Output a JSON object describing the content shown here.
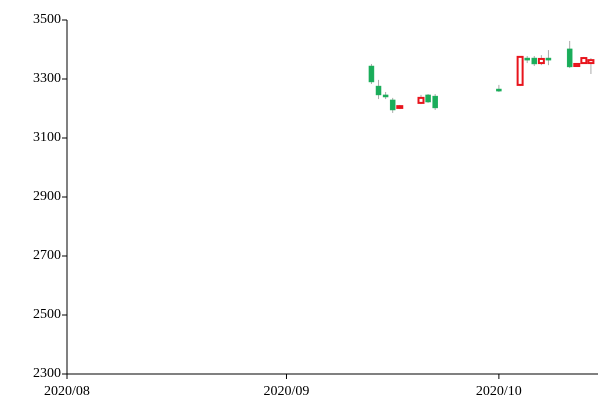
{
  "chart_data": {
    "type": "candlestick",
    "x": [
      "2020-09-13",
      "2020-09-14",
      "2020-09-15",
      "2020-09-16",
      "2020-09-17",
      "2020-09-20",
      "2020-09-21",
      "2020-09-22",
      "2020-10-01",
      "2020-10-04",
      "2020-10-05",
      "2020-10-06",
      "2020-10-07",
      "2020-10-08",
      "2020-10-11",
      "2020-10-12",
      "2020-10-13",
      "2020-10-14"
    ],
    "open": [
      3344,
      3276,
      3246,
      3229,
      3202,
      3219,
      3246,
      3242,
      3266,
      3280,
      3371,
      3371,
      3354,
      3371,
      3402,
      3344,
      3354,
      3354
    ],
    "high": [
      3351,
      3297,
      3256,
      3236,
      3212,
      3246,
      3249,
      3249,
      3280,
      3375,
      3378,
      3378,
      3381,
      3398,
      3429,
      3354,
      3375,
      3371
    ],
    "low": [
      3283,
      3232,
      3232,
      3185,
      3198,
      3215,
      3219,
      3195,
      3256,
      3276,
      3354,
      3344,
      3347,
      3347,
      3337,
      3341,
      3351,
      3317
    ],
    "close": [
      3290,
      3246,
      3239,
      3195,
      3208,
      3236,
      3222,
      3202,
      3259,
      3375,
      3364,
      3351,
      3368,
      3364,
      3341,
      3351,
      3371,
      3364
    ],
    "up_color": "#e8141c",
    "down_color": "#1aad5a",
    "wick_color": "#aaaaaa",
    "xlim": [
      "2020-08-01",
      "2020-10-15"
    ],
    "xticks": [
      {
        "value": "2020-08-01",
        "label": "2020/08"
      },
      {
        "value": "2020-09-01",
        "label": "2020/09"
      },
      {
        "value": "2020-10-01",
        "label": "2020/10"
      }
    ],
    "ylim": [
      2300,
      3500
    ],
    "yticks": [
      2300,
      2500,
      2700,
      2900,
      3100,
      3300,
      3500
    ],
    "grid": false
  }
}
